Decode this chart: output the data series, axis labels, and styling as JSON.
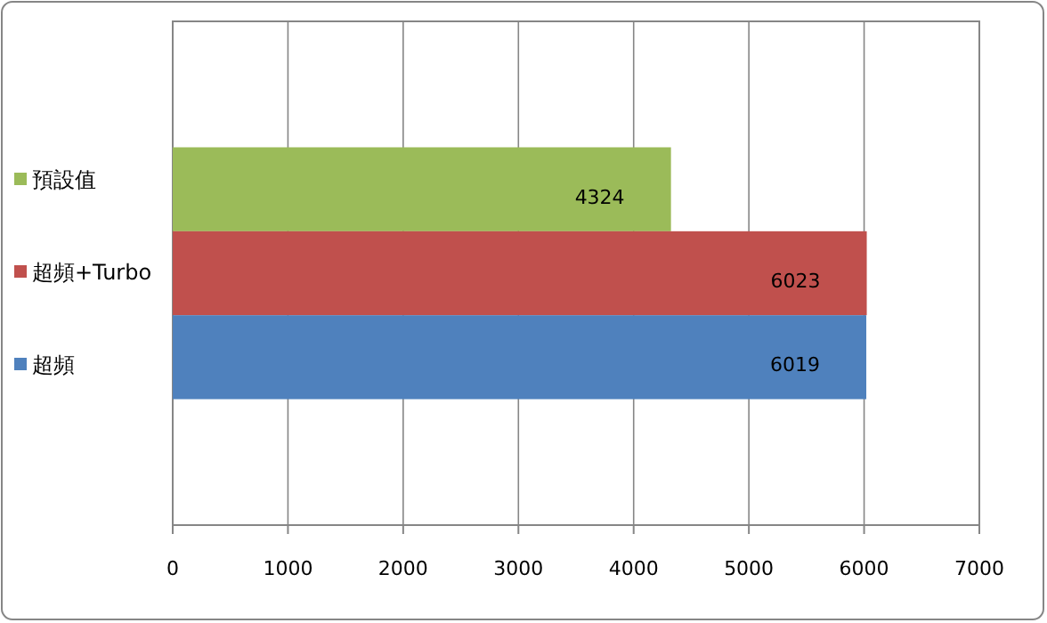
{
  "chart_data": {
    "type": "bar",
    "orientation": "horizontal",
    "categories": [
      null
    ],
    "series": [
      {
        "name": "預設值",
        "color": "#9bbb59",
        "values": [
          4324
        ]
      },
      {
        "name": "超頻+Turbo",
        "color": "#c0504d",
        "values": [
          6023
        ]
      },
      {
        "name": "超頻",
        "color": "#4f81bd",
        "values": [
          6019
        ]
      }
    ],
    "xlim": [
      0,
      7000
    ],
    "xticks": [
      0,
      1000,
      2000,
      3000,
      4000,
      5000,
      6000,
      7000
    ],
    "grid": "x",
    "legend": "left",
    "data_labels": true
  }
}
